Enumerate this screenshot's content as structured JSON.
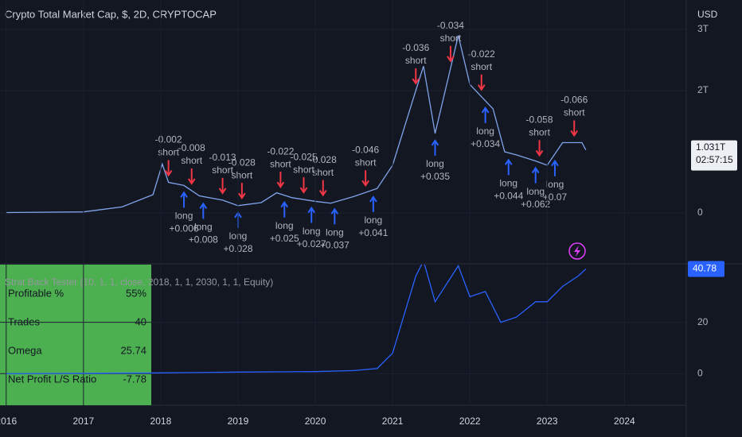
{
  "header": {
    "title": "Crypto Total Market Cap, $, 2D, CRYPTOCAP",
    "currency": "USD",
    "indicator": "Strat Back Tester (10, 1, 1, close, 2018, 1, 1, 2030, 1, 1, Equity)"
  },
  "chart_data": [
    {
      "type": "line",
      "color": "#7fa4ea",
      "x": [
        2016.0,
        2017.0,
        2017.5,
        2017.9,
        2018.02,
        2018.1,
        2018.3,
        2018.5,
        2018.8,
        2019.0,
        2019.3,
        2019.5,
        2019.7,
        2020.0,
        2020.2,
        2020.5,
        2020.8,
        2021.0,
        2021.3,
        2021.4,
        2021.55,
        2021.85,
        2022.0,
        2022.3,
        2022.45,
        2022.6,
        2022.85,
        2023.0,
        2023.2,
        2023.45,
        2023.5
      ],
      "values": [
        0.007,
        0.018,
        0.1,
        0.3,
        0.8,
        0.5,
        0.45,
        0.28,
        0.21,
        0.12,
        0.17,
        0.33,
        0.25,
        0.19,
        0.16,
        0.27,
        0.4,
        0.78,
        2.0,
        2.4,
        1.3,
        2.9,
        2.1,
        1.7,
        1.0,
        0.95,
        0.85,
        0.78,
        1.15,
        1.15,
        1.031
      ],
      "last_value_label": {
        "value": 1.031,
        "label": "1.031T"
      },
      "countdown": "02:57:15",
      "xlim": [
        2015.92,
        2024.8
      ],
      "ylim": [
        -0.83,
        3.48
      ],
      "yticks": [
        0,
        {
          "value": 2,
          "label": "2T"
        },
        {
          "value": 3,
          "label": "3T"
        }
      ],
      "annotations": [
        {
          "x": 2018.1,
          "side": "short",
          "text": "-0.002"
        },
        {
          "x": 2018.4,
          "side": "short",
          "text": "-0.008"
        },
        {
          "x": 2018.8,
          "side": "short",
          "text": "-0.013"
        },
        {
          "x": 2019.05,
          "side": "short",
          "text": "-0.028"
        },
        {
          "x": 2019.55,
          "side": "short",
          "text": "-0.022"
        },
        {
          "x": 2019.85,
          "side": "short",
          "text": "-0.025"
        },
        {
          "x": 2020.1,
          "side": "short",
          "text": "-0.028"
        },
        {
          "x": 2020.65,
          "side": "short",
          "text": "-0.046"
        },
        {
          "x": 2021.3,
          "side": "short",
          "text": "-0.036"
        },
        {
          "x": 2021.75,
          "side": "short",
          "text": "-0.034"
        },
        {
          "x": 2022.15,
          "side": "short",
          "text": "-0.022"
        },
        {
          "x": 2022.9,
          "side": "short",
          "text": "-0.058"
        },
        {
          "x": 2023.35,
          "side": "short",
          "text": "-0.066"
        },
        {
          "x": 2018.3,
          "side": "long",
          "text": "+0.006"
        },
        {
          "x": 2018.55,
          "side": "long",
          "text": "+0.008"
        },
        {
          "x": 2019.0,
          "side": "long",
          "text": "+0.028"
        },
        {
          "x": 2019.6,
          "side": "long",
          "text": "+0.025"
        },
        {
          "x": 2019.95,
          "side": "long",
          "text": "+0.027"
        },
        {
          "x": 2020.25,
          "side": "long",
          "text": "+0.037"
        },
        {
          "x": 2020.75,
          "side": "long",
          "text": "+0.041"
        },
        {
          "x": 2021.55,
          "side": "long",
          "text": "+0.035"
        },
        {
          "x": 2022.2,
          "side": "long",
          "text": "+0.034"
        },
        {
          "x": 2022.5,
          "side": "long",
          "text": "+0.044"
        },
        {
          "x": 2022.85,
          "side": "long",
          "text": "+0.062"
        },
        {
          "x": 2023.1,
          "side": "long",
          "text": "+0.07"
        }
      ]
    },
    {
      "type": "line",
      "color": "#2962ff",
      "x": [
        2016.0,
        2018.0,
        2019.0,
        2020.0,
        2020.5,
        2020.8,
        2021.0,
        2021.3,
        2021.4,
        2021.55,
        2021.85,
        2022.0,
        2022.2,
        2022.4,
        2022.6,
        2022.85,
        2023.0,
        2023.2,
        2023.4,
        2023.5
      ],
      "values": [
        0,
        0.3,
        0.6,
        0.8,
        1.2,
        2,
        8,
        38,
        44,
        28,
        42,
        30,
        32,
        20,
        22,
        28,
        28,
        34,
        38,
        40.78
      ],
      "xlim": [
        2015.92,
        2024.8
      ],
      "ylim": [
        -12.3,
        42.5
      ],
      "yticks": [
        0,
        20
      ],
      "xticks": [
        2016,
        2017,
        2018,
        2019,
        2020,
        2021,
        2022,
        2023,
        2024
      ]
    }
  ],
  "table": {
    "rows": [
      [
        "Profitable %",
        "55%"
      ],
      [
        "Trades",
        "40"
      ],
      [
        "Omega",
        "25.74"
      ],
      [
        "Net Profit L/S Ratio",
        "-7.78"
      ]
    ]
  }
}
